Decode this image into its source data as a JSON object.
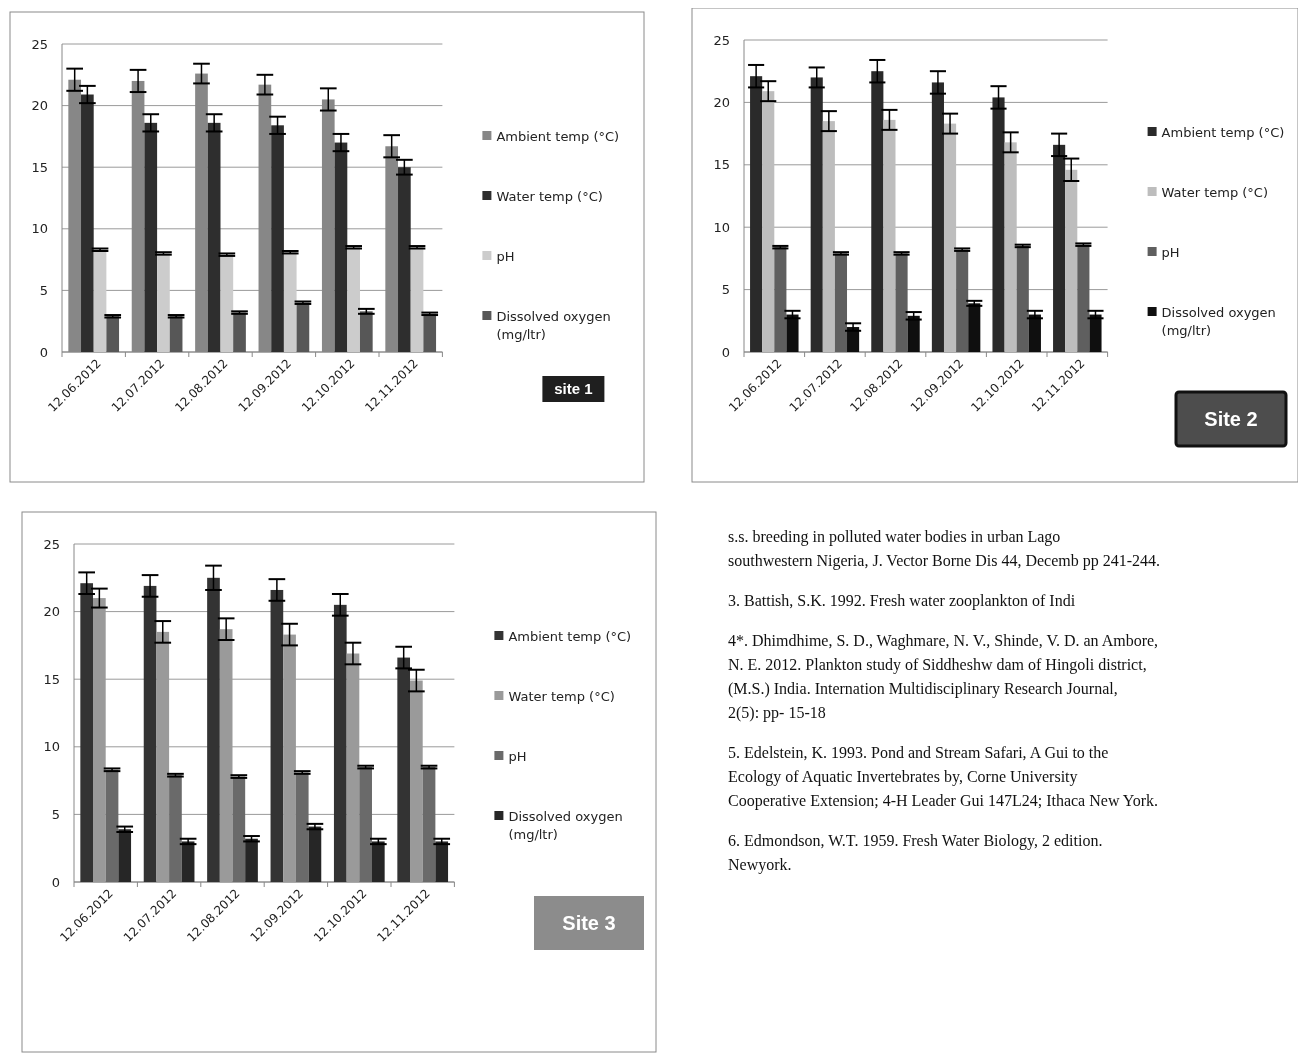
{
  "chart_data": [
    {
      "type": "bar",
      "categories": [
        "12.06.2012",
        "12.07.2012",
        "12.08.2012",
        "12.09.2012",
        "12.10.2012",
        "12.11.2012"
      ],
      "series": [
        {
          "name": "Ambient temp (°C)",
          "color": "#878787",
          "values": [
            22.1,
            22.0,
            22.6,
            21.7,
            20.5,
            16.7
          ],
          "errors": [
            0.9,
            0.9,
            0.8,
            0.8,
            0.9,
            0.9
          ]
        },
        {
          "name": "Water temp (°C)",
          "color": "#2e2e2e",
          "values": [
            20.9,
            18.6,
            18.6,
            18.4,
            17.0,
            15.0
          ],
          "errors": [
            0.7,
            0.7,
            0.7,
            0.7,
            0.7,
            0.6
          ]
        },
        {
          "name": "pH",
          "color": "#cccccc",
          "values": [
            8.3,
            8.0,
            7.9,
            8.1,
            8.5,
            8.5
          ],
          "errors": [
            0.1,
            0.1,
            0.1,
            0.1,
            0.1,
            0.1
          ]
        },
        {
          "name": "Dissolved oxygen (mg/ltr)",
          "color": "#575757",
          "values": [
            2.9,
            2.9,
            3.2,
            4.0,
            3.3,
            3.1
          ],
          "errors": [
            0.1,
            0.1,
            0.1,
            0.1,
            0.2,
            0.1
          ]
        }
      ],
      "ylim": [
        0,
        25
      ],
      "yticks": [
        0,
        5,
        10,
        15,
        20,
        25
      ],
      "grid": "y",
      "legend": "right",
      "annotations": [
        "site 1"
      ]
    },
    {
      "type": "bar",
      "categories": [
        "12.06.2012",
        "12.07.2012",
        "12.08.2012",
        "12.09.2012",
        "12.10.2012",
        "12.11.2012"
      ],
      "series": [
        {
          "name": "Ambient temp (°C)",
          "color": "#2a2a2a",
          "values": [
            22.1,
            22.0,
            22.5,
            21.6,
            20.4,
            16.6
          ],
          "errors": [
            0.9,
            0.8,
            0.9,
            0.9,
            0.9,
            0.9
          ]
        },
        {
          "name": "Water temp (°C)",
          "color": "#bdbdbd",
          "values": [
            20.9,
            18.5,
            18.6,
            18.3,
            16.8,
            14.6
          ],
          "errors": [
            0.8,
            0.8,
            0.8,
            0.8,
            0.8,
            0.9
          ]
        },
        {
          "name": "pH",
          "color": "#5f5f5f",
          "values": [
            8.4,
            7.9,
            7.9,
            8.2,
            8.5,
            8.6
          ],
          "errors": [
            0.1,
            0.1,
            0.1,
            0.1,
            0.1,
            0.1
          ]
        },
        {
          "name": "Dissolved oxygen (mg/ltr)",
          "color": "#0f0f0f",
          "values": [
            3.0,
            2.0,
            2.9,
            3.9,
            3.0,
            3.0
          ],
          "errors": [
            0.3,
            0.3,
            0.3,
            0.2,
            0.3,
            0.3
          ]
        }
      ],
      "ylim": [
        0,
        25
      ],
      "yticks": [
        0,
        5,
        10,
        15,
        20,
        25
      ],
      "grid": "y",
      "legend": "right",
      "annotations": [
        "Site 2"
      ]
    },
    {
      "type": "bar",
      "categories": [
        "12.06.2012",
        "12.07.2012",
        "12.08.2012",
        "12.09.2012",
        "12.10.2012",
        "12.11.2012"
      ],
      "series": [
        {
          "name": "Ambient temp (°C)",
          "color": "#333333",
          "values": [
            22.1,
            21.9,
            22.5,
            21.6,
            20.5,
            16.6
          ],
          "errors": [
            0.8,
            0.8,
            0.9,
            0.8,
            0.8,
            0.8
          ]
        },
        {
          "name": "Water temp (°C)",
          "color": "#9a9a9a",
          "values": [
            21.0,
            18.5,
            18.7,
            18.3,
            16.9,
            14.9
          ],
          "errors": [
            0.7,
            0.8,
            0.8,
            0.8,
            0.8,
            0.8
          ]
        },
        {
          "name": "pH",
          "color": "#6a6a6a",
          "values": [
            8.3,
            7.9,
            7.8,
            8.1,
            8.5,
            8.5
          ],
          "errors": [
            0.1,
            0.1,
            0.1,
            0.1,
            0.1,
            0.1
          ]
        },
        {
          "name": "Dissolved oxygen (mg/ltr)",
          "color": "#262626",
          "values": [
            3.9,
            3.0,
            3.2,
            4.1,
            3.0,
            3.0
          ],
          "errors": [
            0.2,
            0.2,
            0.2,
            0.2,
            0.2,
            0.2
          ]
        }
      ],
      "ylim": [
        0,
        25
      ],
      "yticks": [
        0,
        5,
        10,
        15,
        20,
        25
      ],
      "grid": "y",
      "legend": "right",
      "annotations": [
        "Site 3"
      ]
    },
    {
      "type": "other",
      "annotations": [
        "s.s. breeding in polluted water bodies in urban Lago southwestern Nigeria, J. Vector Borne Dis 44, Decemb pp 241-244.",
        "3. Battish, S.K. 1992. Fresh water zooplankton of Indi",
        "4*. Dhimdhime, S. D., Waghmare, N. V., Shinde, V. D. an Ambore, N. E. 2012. Plankton study of Siddheshw dam of Hingoli district, (M.S.) India. Internation Multidisciplinary Research Journal, 2(5): pp- 15-18",
        "5. Edelstein, K. 1993. Pond and Stream Safari, A Gui to the Ecology of Aquatic Invertebrates by, Corne University Cooperative Extension; 4-H Leader Gui 147L24; Ithaca New York.",
        "6. Edmondson, W.T. 1959. Fresh Water Biology, 2 edition. Newyork."
      ]
    }
  ]
}
